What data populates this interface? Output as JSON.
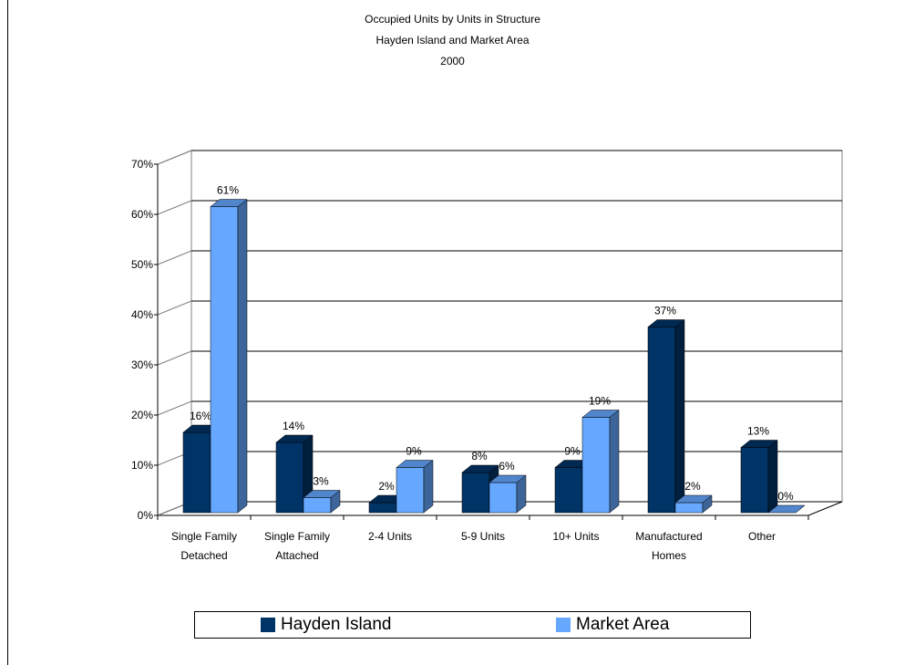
{
  "chart_data": {
    "type": "bar",
    "title": "Occupied Units by Units in Structure",
    "subtitle_lines": [
      "Hayden Island and Market Area",
      "2000"
    ],
    "categories": [
      [
        "Single Family",
        "Detached"
      ],
      [
        "Single Family",
        "Attached"
      ],
      [
        "2-4 Units"
      ],
      [
        "5-9 Units"
      ],
      [
        "10+ Units"
      ],
      [
        "Manufactured",
        "Homes"
      ],
      [
        "Other"
      ]
    ],
    "series": [
      {
        "name": "Hayden Island",
        "color": "#003366",
        "values": [
          16,
          14,
          2,
          8,
          9,
          37,
          13
        ]
      },
      {
        "name": "Market Area",
        "color": "#66A8FF",
        "values": [
          61,
          3,
          9,
          6,
          19,
          2,
          0
        ]
      }
    ],
    "yticks": [
      "0%",
      "10%",
      "20%",
      "30%",
      "40%",
      "50%",
      "60%",
      "70%"
    ],
    "ylim": [
      0,
      70
    ],
    "value_suffix": "%",
    "grid": true,
    "legend_position": "bottom"
  }
}
